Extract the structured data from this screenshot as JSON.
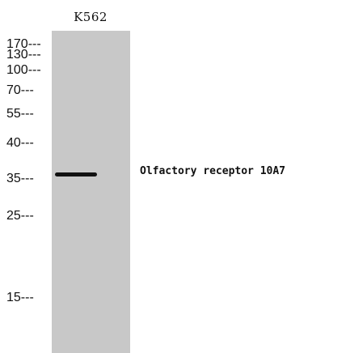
{
  "lane": {
    "label": "K562"
  },
  "markers": [
    {
      "kda": "170",
      "label": "170---"
    },
    {
      "kda": "130",
      "label": "130---"
    },
    {
      "kda": "100",
      "label": "100---"
    },
    {
      "kda": "70",
      "label": "70---"
    },
    {
      "kda": "55",
      "label": "55---"
    },
    {
      "kda": "40",
      "label": "40---"
    },
    {
      "kda": "35",
      "label": "35---"
    },
    {
      "kda": "25",
      "label": "25---"
    },
    {
      "kda": "15",
      "label": "15---"
    }
  ],
  "band": {
    "protein": "Olfactory receptor 10A7",
    "kda": 35
  },
  "colors": {
    "membrane": "#c8c8c8",
    "band": "#111111",
    "text": "#111111",
    "background": "#ffffff"
  }
}
